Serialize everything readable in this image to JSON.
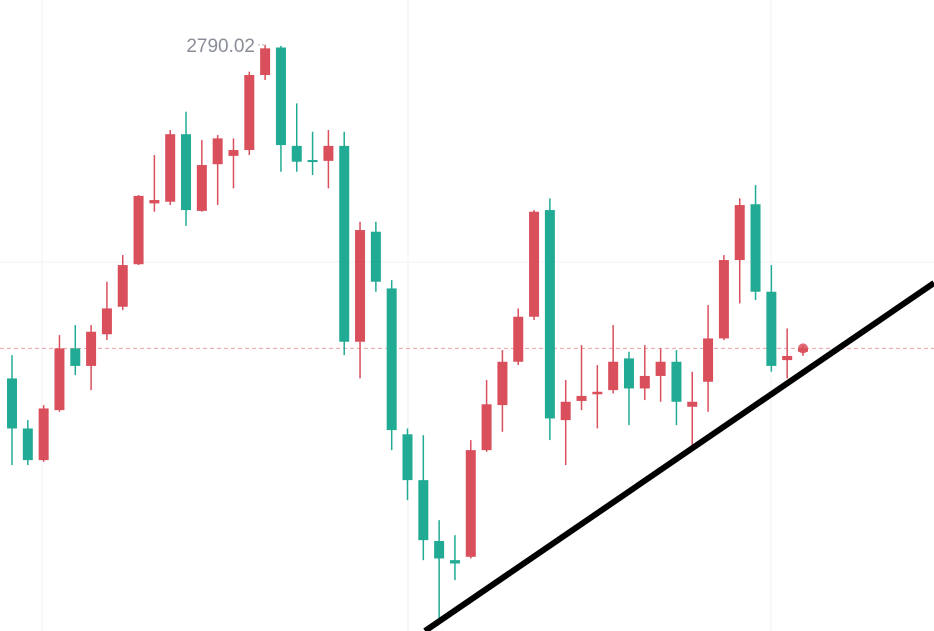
{
  "chart_data": {
    "type": "candlestick",
    "high_label": "2790.02",
    "up_color": "#d94f5c",
    "down_color": "#22ab94",
    "ylim": [
      2719.7,
      2795.4
    ],
    "open": [
      2750.0,
      2744.0,
      2740.2,
      2746.2,
      2753.6,
      2751.5,
      2755.3,
      2758.6,
      2763.7,
      2771.0,
      2771.2,
      2779.3,
      2770.1,
      2775.7,
      2776.7,
      2777.4,
      2786.4,
      2789.7,
      2777.9,
      2776.2,
      2776.1,
      2777.9,
      2754.4,
      2767.6,
      2760.8,
      2743.3,
      2737.8,
      2730.5,
      2728.2,
      2728.6,
      2741.4,
      2746.8,
      2752.0,
      2757.4,
      2770.2,
      2745.0,
      2747.3,
      2748.1,
      2748.6,
      2752.4,
      2748.8,
      2750.3,
      2752.0,
      2746.6,
      2749.6,
      2754.8,
      2764.2,
      2770.9,
      2760.4,
      2752.2,
      2753.2
    ],
    "high": [
      2752.8,
      2745.0,
      2746.8,
      2755.2,
      2756.4,
      2756.4,
      2761.6,
      2764.8,
      2772.0,
      2776.8,
      2779.8,
      2782.0,
      2778.6,
      2779.2,
      2778.8,
      2786.8,
      2790.02,
      2789.9,
      2783.0,
      2779.6,
      2779.8,
      2779.6,
      2768.8,
      2768.8,
      2761.8,
      2744.0,
      2743.2,
      2733.0,
      2731.2,
      2742.6,
      2749.8,
      2753.4,
      2758.4,
      2770.2,
      2771.6,
      2749.8,
      2754.0,
      2751.6,
      2756.4,
      2753.2,
      2754.0,
      2753.6,
      2753.4,
      2750.8,
      2758.8,
      2764.8,
      2771.6,
      2773.2,
      2763.6,
      2756.0,
      2753.9
    ],
    "low": [
      2739.6,
      2739.6,
      2740.0,
      2746.0,
      2750.4,
      2748.6,
      2754.6,
      2758.2,
      2763.6,
      2770.0,
      2770.8,
      2768.3,
      2770.0,
      2770.8,
      2772.8,
      2776.8,
      2785.8,
      2774.8,
      2774.8,
      2774.4,
      2772.8,
      2752.8,
      2750.0,
      2760.4,
      2741.4,
      2735.4,
      2728.2,
      2721.0,
      2725.8,
      2728.4,
      2741.2,
      2743.6,
      2751.6,
      2757.0,
      2742.6,
      2739.6,
      2746.2,
      2744.0,
      2748.2,
      2744.4,
      2747.4,
      2747.2,
      2744.4,
      2742.0,
      2746.0,
      2754.6,
      2759.0,
      2759.4,
      2750.8,
      2750.0,
      2752.7
    ],
    "close": [
      2744.0,
      2740.2,
      2746.4,
      2753.6,
      2751.5,
      2755.6,
      2758.4,
      2763.6,
      2771.9,
      2771.4,
      2779.3,
      2770.2,
      2775.6,
      2778.8,
      2777.4,
      2786.4,
      2789.6,
      2778.0,
      2776.0,
      2776.0,
      2777.9,
      2754.4,
      2767.8,
      2761.6,
      2743.8,
      2737.8,
      2730.6,
      2728.4,
      2727.8,
      2741.4,
      2746.9,
      2752.0,
      2757.4,
      2770.0,
      2745.2,
      2747.2,
      2747.9,
      2748.4,
      2752.0,
      2748.8,
      2750.3,
      2752.0,
      2747.2,
      2747.2,
      2754.8,
      2764.2,
      2770.8,
      2760.4,
      2751.5,
      2752.7,
      2753.6
    ],
    "last_price": 2753.6,
    "high_label_index": 16
  }
}
